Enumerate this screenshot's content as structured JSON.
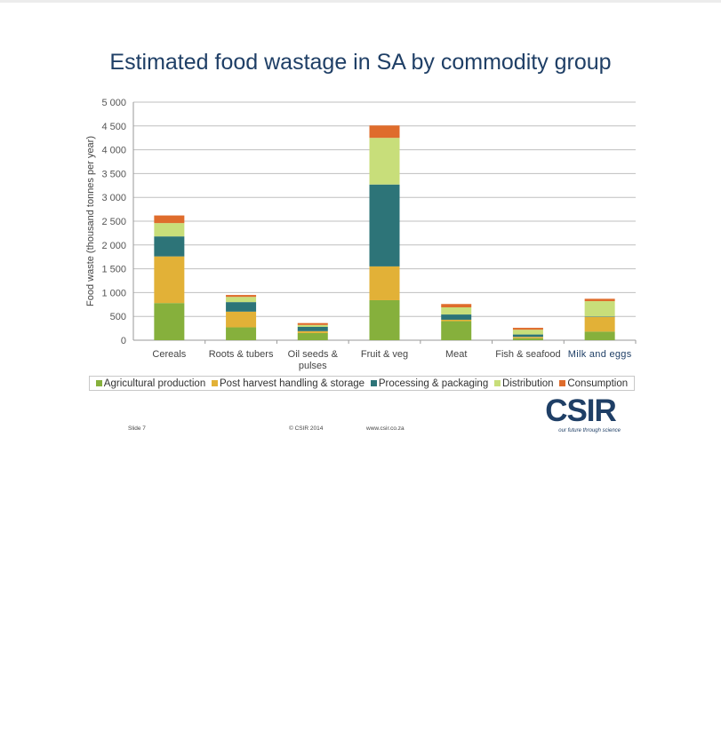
{
  "page": {
    "title": "Estimated food wastage in SA by commodity group",
    "footer": {
      "slide": "Slide 7",
      "copyright": "© CSIR  2014",
      "url": "www.csir.co.za"
    },
    "logo": {
      "text": "CSIR",
      "tagline": "our future through science"
    }
  },
  "chart_data": {
    "type": "bar",
    "stacked": true,
    "title": "Estimated food wastage in SA by commodity group",
    "ylabel": "Food waste (thousand tonnes per year)",
    "xlabel": "",
    "ylim": [
      0,
      5000
    ],
    "yticks": [
      0,
      500,
      1000,
      1500,
      2000,
      2500,
      3000,
      3500,
      4000,
      4500,
      5000
    ],
    "ytick_labels": [
      "0",
      "500",
      "1 000",
      "1 500",
      "2 000",
      "2 500",
      "3 000",
      "3 500",
      "4 000",
      "4 500",
      "5 000"
    ],
    "grid": true,
    "legend_position": "bottom",
    "categories": [
      [
        "Cereals"
      ],
      [
        "Roots & tubers"
      ],
      [
        "Oil seeds &",
        "pulses"
      ],
      [
        "Fruit & veg"
      ],
      [
        "Meat"
      ],
      [
        "Fish & seafood"
      ],
      [
        "Milk and eggs"
      ]
    ],
    "series": [
      {
        "name": "Agricultural production",
        "color": "#86b03c",
        "values": [
          780,
          270,
          150,
          840,
          400,
          40,
          180
        ]
      },
      {
        "name": "Post harvest handling & storage",
        "color": "#e2b137",
        "values": [
          980,
          330,
          40,
          710,
          30,
          30,
          310
        ]
      },
      {
        "name": "Processing & packaging",
        "color": "#2d7478",
        "values": [
          420,
          200,
          90,
          1720,
          110,
          50,
          10
        ]
      },
      {
        "name": "Distribution",
        "color": "#c8de7a",
        "values": [
          280,
          110,
          40,
          980,
          150,
          100,
          320
        ]
      },
      {
        "name": "Consumption",
        "color": "#df6c2c",
        "values": [
          160,
          40,
          40,
          260,
          70,
          40,
          50
        ]
      }
    ]
  }
}
